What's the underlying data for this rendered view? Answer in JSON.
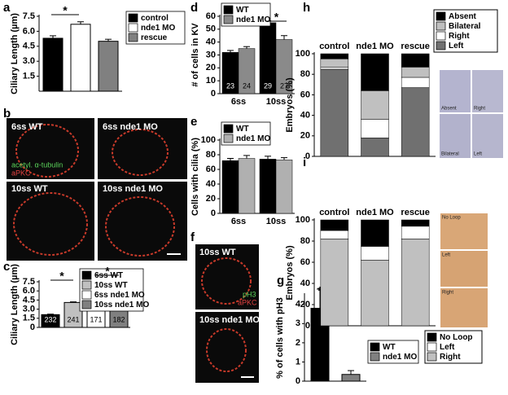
{
  "panel_letters": [
    "a",
    "b",
    "c",
    "d",
    "e",
    "f",
    "g",
    "h",
    "i"
  ],
  "images": {
    "b": [
      "6ss WT",
      "6ss nde1 MO",
      "acetyl. α-tubulin",
      "aPKC",
      "10ss WT",
      "10ss nde1 MO"
    ],
    "f": [
      "10ss WT",
      "pH3",
      "aPKC",
      "10ss nde1 MO"
    ],
    "h": [
      "Absent",
      "Right",
      "Bilateral",
      "Left"
    ],
    "i": [
      "No Loop",
      "Left",
      "Right"
    ]
  },
  "chart_data": [
    {
      "type": "bar",
      "ylabel": "Ciliary Length (µm)",
      "categories": [
        "control",
        "nde1 MO",
        "rescue"
      ],
      "values": [
        5.3,
        6.7,
        5.0
      ],
      "errors": [
        0.25,
        0.25,
        0.2
      ],
      "colors": [
        "#000000",
        "#ffffff",
        "#808080"
      ],
      "ylim": [
        0,
        7.5
      ],
      "yticks": [
        1.5,
        {
          "value": 3,
          "label": "3.0"
        },
        4.5,
        {
          "value": 6,
          "label": "6.0"
        },
        7.5
      ],
      "annotations": [
        "*"
      ]
    },
    {
      "type": "bar",
      "ylabel": "Ciliary Length (µm)",
      "categories": [
        "6ss WT",
        "10ss WT",
        "6ss nde1 MO",
        "10ss nde1 MO"
      ],
      "values": [
        2.1,
        4.1,
        4.2,
        6.4
      ],
      "errors": [
        0.08,
        0.1,
        0.12,
        0.15
      ],
      "colors": [
        "#000000",
        "#c0c0c0",
        "#ffffff",
        "#808080"
      ],
      "n_labels": [
        "232",
        "241",
        "171",
        "182"
      ],
      "ylim": [
        0,
        7.5
      ],
      "yticks": [
        0,
        1.5,
        {
          "value": 3,
          "label": "3.0"
        },
        4.5,
        {
          "value": 6,
          "label": "6.0"
        },
        7.5
      ],
      "annotations": [
        "*",
        "*"
      ]
    },
    {
      "type": "grouped_bar",
      "ylabel": "# of cells in KV",
      "categories": [
        "6ss",
        "10ss"
      ],
      "series": [
        {
          "name": "WT",
          "color": "#000000",
          "values": [
            32,
            55
          ],
          "errors": [
            1.5,
            1.5
          ],
          "n_labels": [
            "23",
            "29"
          ]
        },
        {
          "name": "nde1 MO",
          "color": "#8a8a8a",
          "values": [
            35,
            42
          ],
          "errors": [
            1.5,
            3
          ],
          "n_labels": [
            "24",
            "27"
          ]
        }
      ],
      "ylim": [
        0,
        60
      ],
      "yticks": [
        0,
        10,
        20,
        30,
        40,
        50,
        60
      ],
      "annotations": [
        "*"
      ]
    },
    {
      "type": "grouped_bar",
      "ylabel": "Cells with cilia (%)",
      "categories": [
        "6ss",
        "10ss"
      ],
      "series": [
        {
          "name": "WT",
          "color": "#000000",
          "values": [
            72,
            74
          ],
          "errors": [
            3,
            4
          ]
        },
        {
          "name": "nde1 MO",
          "color": "#b0b0b0",
          "values": [
            75,
            73
          ],
          "errors": [
            4,
            3
          ]
        }
      ],
      "ylim": [
        0,
        100
      ],
      "yticks": [
        0,
        20,
        40,
        60,
        80,
        100
      ]
    },
    {
      "type": "bar",
      "ylabel": "% of cells with pH3",
      "categories": [
        "WT",
        "nde1 MO"
      ],
      "values": [
        3.8,
        0.35
      ],
      "errors": [
        1.0,
        0.2
      ],
      "colors": [
        "#000000",
        "#808080"
      ],
      "ylim": [
        0,
        4.5
      ],
      "yticks": [
        0,
        1,
        2,
        3,
        4
      ],
      "annotations": [
        "*"
      ]
    },
    {
      "type": "stacked_bar",
      "ylabel": "Embryos (%)",
      "categories": [
        "control",
        "nde1 MO",
        "rescue"
      ],
      "series": [
        {
          "name": "Absent",
          "color": "#000000",
          "values": [
            5,
            36,
            13
          ]
        },
        {
          "name": "Bilateral",
          "color": "#c0c0c0",
          "values": [
            8,
            28,
            10
          ]
        },
        {
          "name": "Right",
          "color": "#ffffff",
          "values": [
            2,
            18,
            10
          ]
        },
        {
          "name": "Left",
          "color": "#707070",
          "values": [
            85,
            18,
            67
          ]
        }
      ],
      "ylim": [
        0,
        100
      ],
      "yticks": [
        0,
        20,
        40,
        60,
        80,
        100
      ]
    },
    {
      "type": "stacked_bar",
      "ylabel": "Embryos (%)",
      "categories": [
        "control",
        "nde1 MO",
        "rescue"
      ],
      "series": [
        {
          "name": "No Loop",
          "color": "#000000",
          "values": [
            10,
            25,
            6
          ]
        },
        {
          "name": "Left",
          "color": "#ffffff",
          "values": [
            8,
            13,
            12
          ]
        },
        {
          "name": "Right",
          "color": "#c0c0c0",
          "values": [
            82,
            62,
            82
          ]
        }
      ],
      "ylim": [
        0,
        100
      ],
      "yticks": [
        0,
        20,
        40,
        60,
        80,
        100
      ]
    }
  ]
}
